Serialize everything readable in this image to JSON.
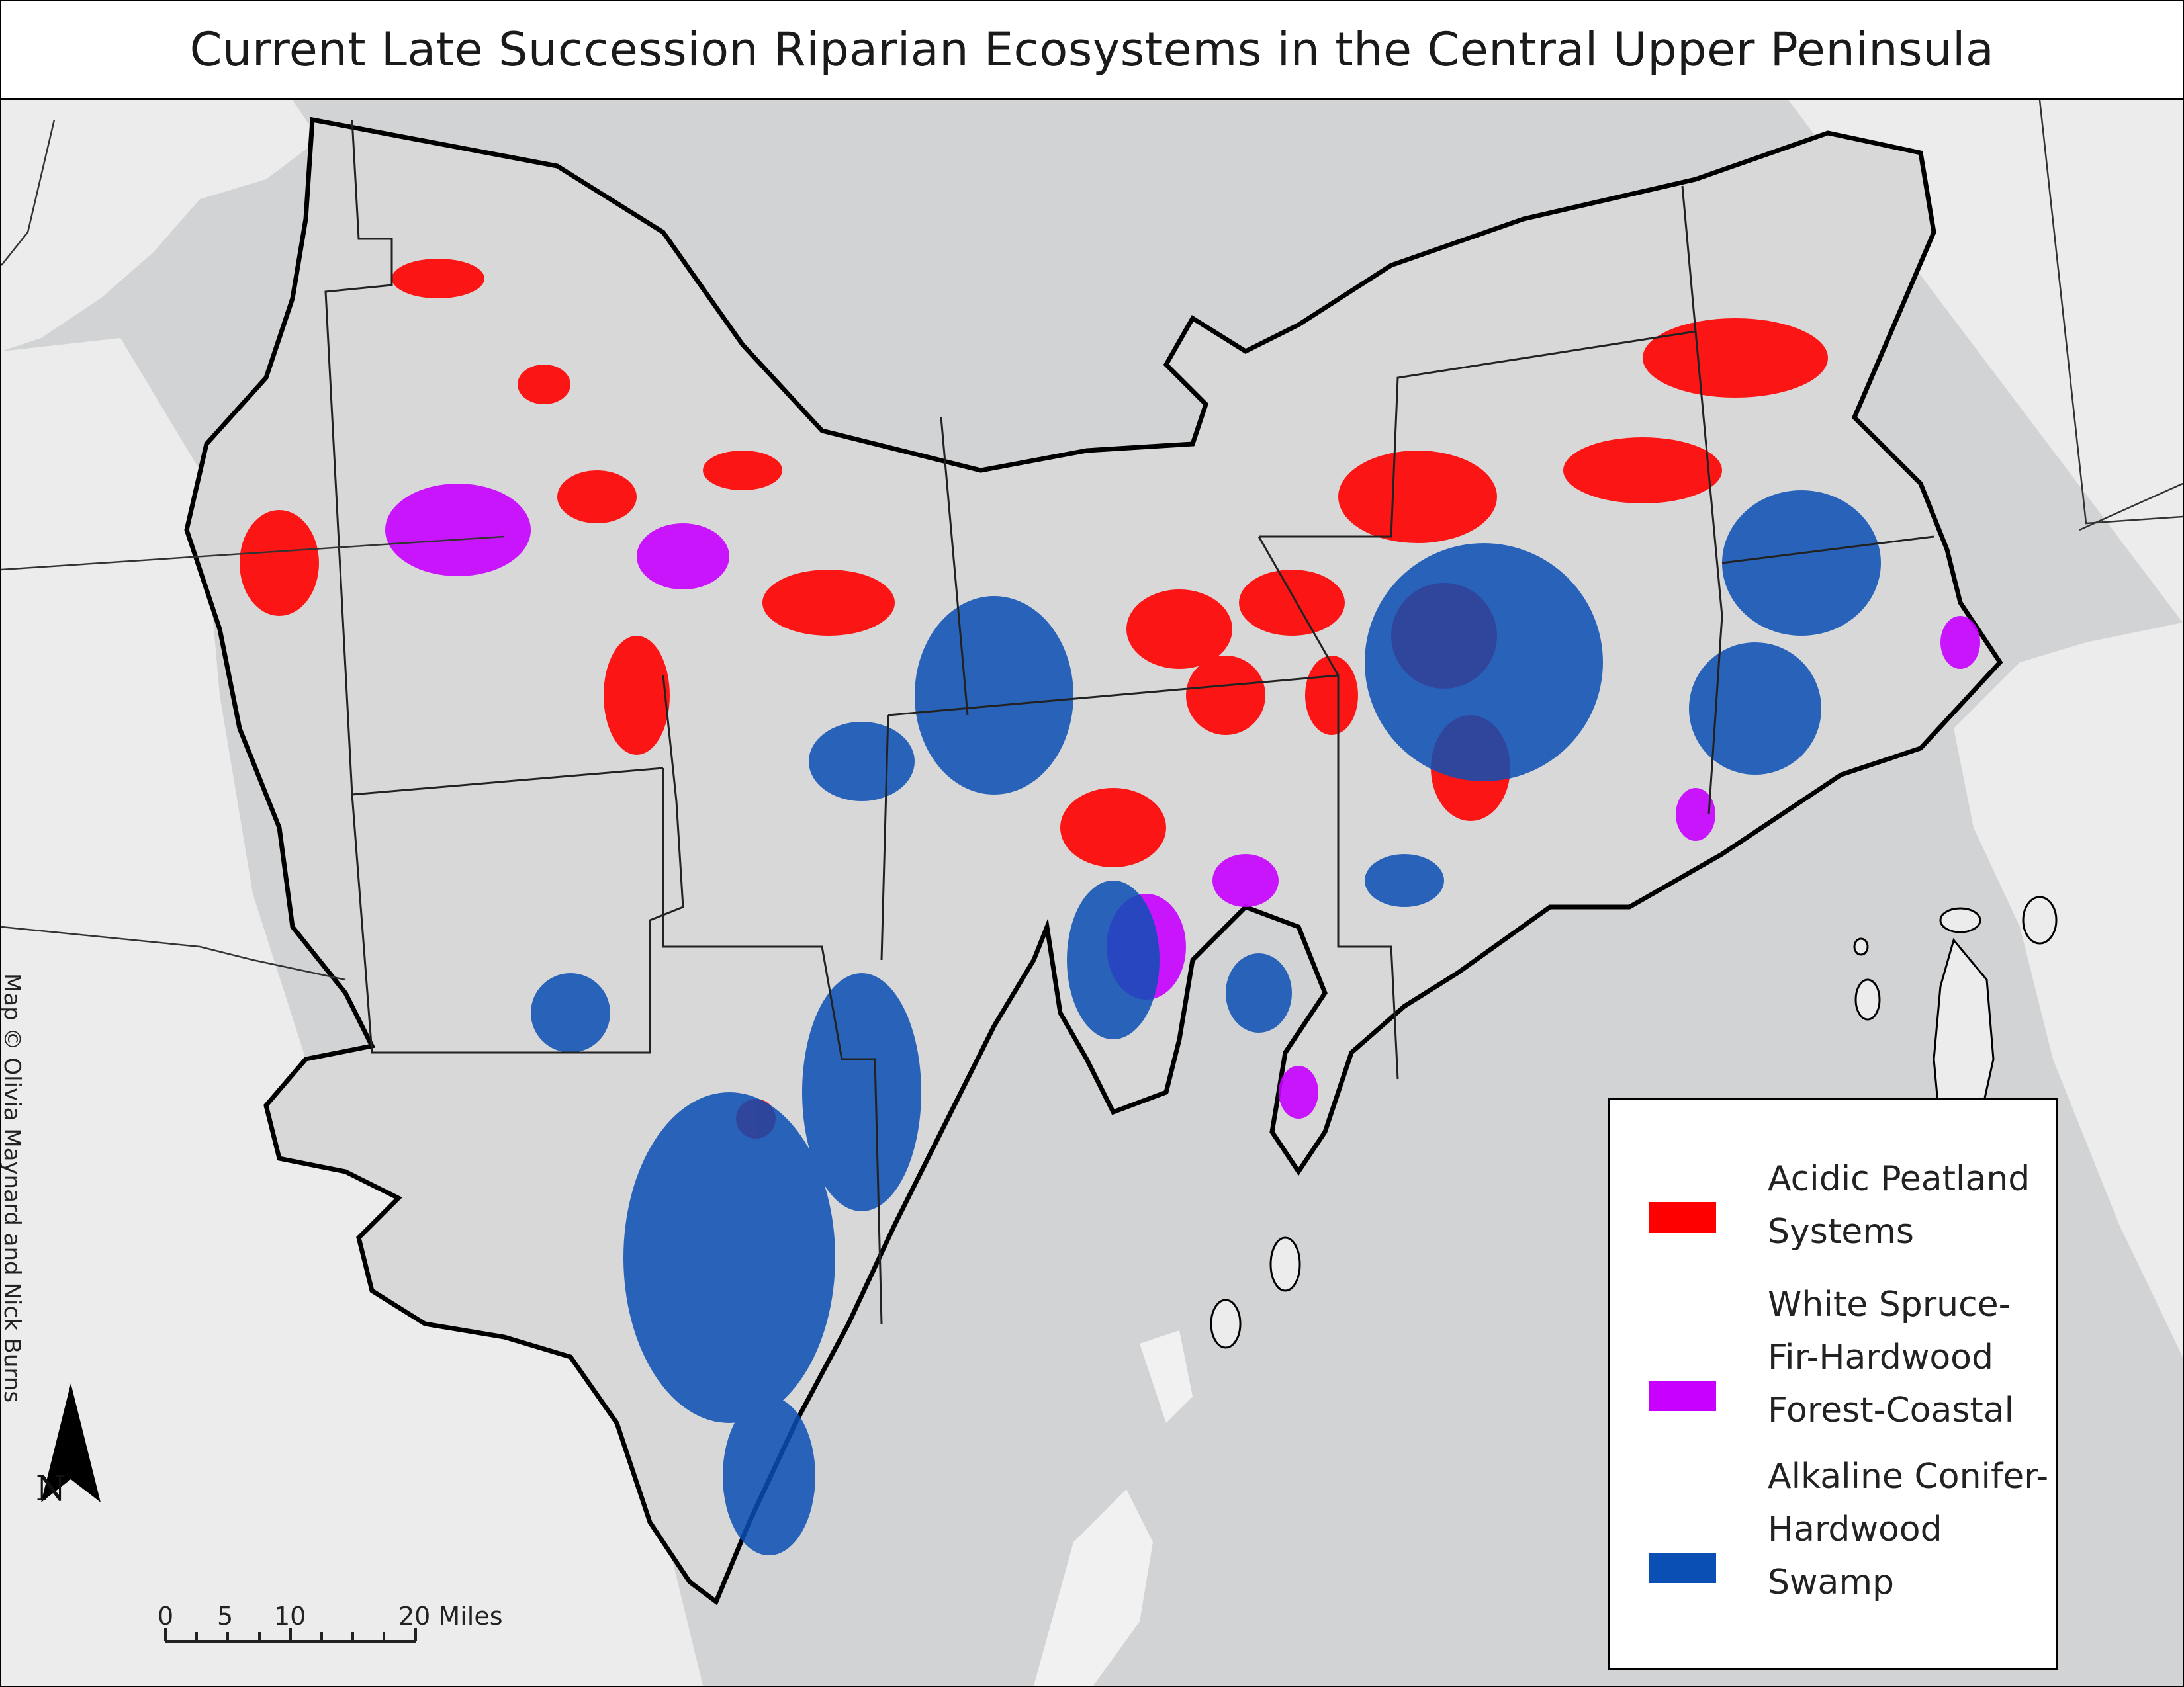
{
  "title": "Current Late Succession Riparian Ecosystems in the Central Upper Peninsula",
  "legend": {
    "items": [
      {
        "label_line1": "Acidic Peatland",
        "label_line2": "Systems",
        "label_line3": "",
        "color": "#ff0000"
      },
      {
        "label_line1": "White Spruce-",
        "label_line2": "Fir-Hardwood",
        "label_line3": "Forest-Coastal",
        "color": "#c800ff"
      },
      {
        "label_line1": "Alkaline Conifer-",
        "label_line2": "Hardwood",
        "label_line3": "Swamp",
        "color": "#0a4fb4"
      }
    ]
  },
  "credit": "Map © Olivia Maynard and Nick Burns",
  "north_arrow": {
    "label": "N"
  },
  "scale_bar": {
    "labels": [
      "0",
      "5",
      "10",
      "20 Miles"
    ]
  },
  "colors": {
    "water": "#d1d3d4",
    "land_outside": "#ececec",
    "study_area": "#d8d8d8",
    "outline": "#000000"
  }
}
